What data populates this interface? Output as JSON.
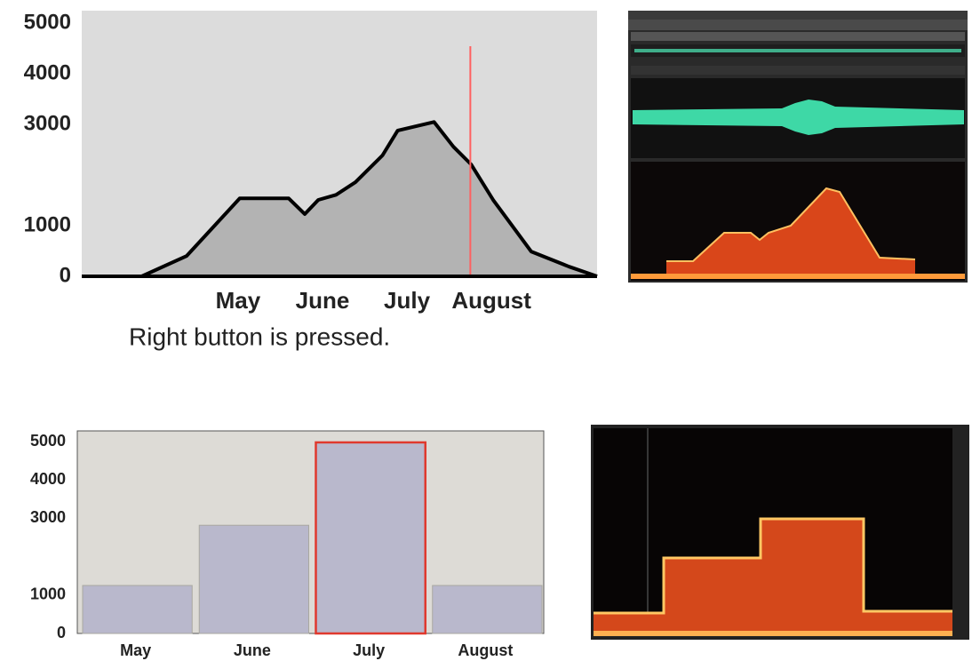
{
  "chart_data": [
    {
      "type": "area",
      "x": [
        -0.85,
        -0.14,
        0.39,
        1.02,
        1.6,
        1.79,
        1.95,
        2.16,
        2.39,
        2.71,
        2.89,
        3.32,
        3.55,
        3.76,
        4.02,
        4.47,
        4.92,
        5.25
      ],
      "values": [
        0,
        0,
        400,
        1540,
        1540,
        1230,
        1510,
        1610,
        1860,
        2390,
        2880,
        3050,
        2560,
        2210,
        1510,
        490,
        190,
        0
      ],
      "xlim": [
        -0.85,
        5.25
      ],
      "xticks": [
        {
          "value": 1,
          "label": "May"
        },
        {
          "value": 2,
          "label": "June"
        },
        {
          "value": 3,
          "label": "July"
        },
        {
          "value": 4,
          "label": "August"
        }
      ],
      "ylim": [
        0,
        5250
      ],
      "yticks": [
        0,
        1000,
        3000,
        4000,
        5000
      ],
      "color": "#b3b3b3",
      "marker_x": 3.75,
      "marker_color": "#ff6060",
      "annotation": "Right button is pressed."
    },
    {
      "type": "bar",
      "categories": [
        "May",
        "June",
        "July",
        "August"
      ],
      "values": [
        1250,
        2820,
        4980,
        1250
      ],
      "ylim": [
        0,
        5280
      ],
      "yticks": [
        0,
        1000,
        3000,
        4000,
        5000
      ],
      "color": "#b9b8cc",
      "highlight_index": 2,
      "highlight_color": "#e0392e"
    }
  ]
}
